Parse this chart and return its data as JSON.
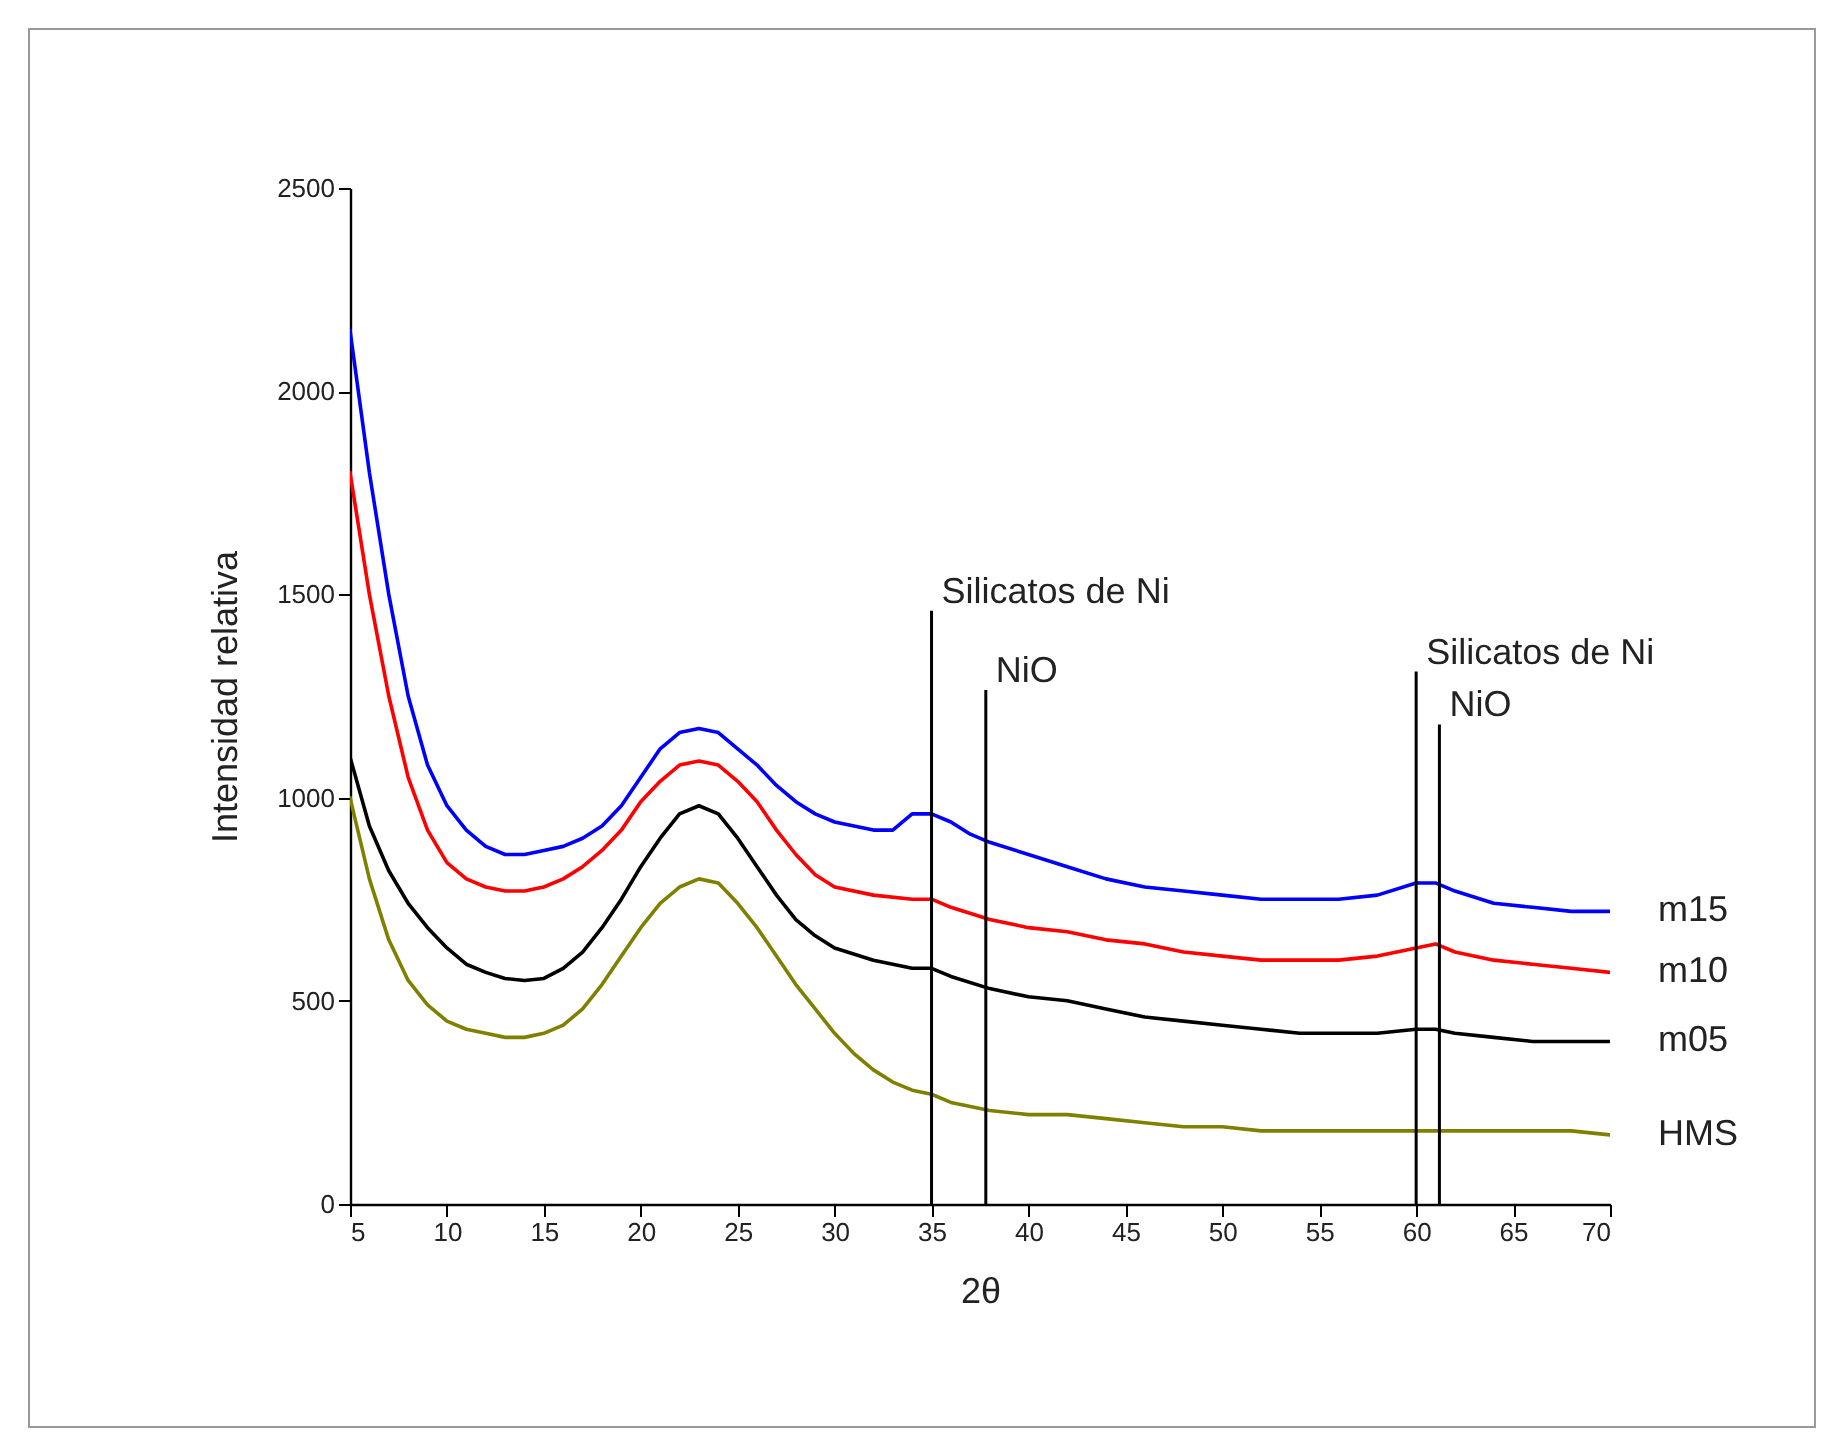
{
  "chart_data": {
    "type": "line",
    "xlabel": "2θ",
    "ylabel": "Intensidad relativa",
    "xlim": [
      5,
      70
    ],
    "xticks": [
      5,
      10,
      15,
      20,
      25,
      30,
      35,
      40,
      45,
      50,
      55,
      60,
      65,
      70
    ],
    "ylim": [
      0,
      2500
    ],
    "yticks": [
      0,
      500,
      1000,
      1500,
      2000,
      2500
    ],
    "grid": false,
    "legend": false,
    "series": [
      {
        "name": "m15",
        "color": "#0000ff",
        "x": [
          5,
          6,
          7,
          8,
          9,
          10,
          11,
          12,
          13,
          14,
          15,
          16,
          17,
          18,
          19,
          20,
          21,
          22,
          23,
          24,
          25,
          26,
          27,
          28,
          29,
          30,
          31,
          32,
          33,
          34,
          35,
          36,
          37,
          38,
          40,
          42,
          44,
          46,
          48,
          50,
          52,
          54,
          56,
          58,
          60,
          61,
          62,
          64,
          66,
          68,
          70
        ],
        "values": [
          2150,
          1800,
          1500,
          1250,
          1080,
          980,
          920,
          880,
          860,
          860,
          870,
          880,
          900,
          930,
          980,
          1050,
          1120,
          1160,
          1170,
          1160,
          1120,
          1080,
          1030,
          990,
          960,
          940,
          930,
          920,
          920,
          960,
          960,
          940,
          910,
          890,
          860,
          830,
          800,
          780,
          770,
          760,
          750,
          750,
          750,
          760,
          790,
          790,
          770,
          740,
          730,
          720,
          720
        ]
      },
      {
        "name": "m10",
        "color": "#ff0000",
        "x": [
          5,
          6,
          7,
          8,
          9,
          10,
          11,
          12,
          13,
          14,
          15,
          16,
          17,
          18,
          19,
          20,
          21,
          22,
          23,
          24,
          25,
          26,
          27,
          28,
          29,
          30,
          32,
          34,
          35,
          36,
          38,
          40,
          42,
          44,
          46,
          48,
          50,
          52,
          54,
          56,
          58,
          60,
          61,
          62,
          64,
          66,
          68,
          70
        ],
        "values": [
          1800,
          1500,
          1250,
          1050,
          920,
          840,
          800,
          780,
          770,
          770,
          780,
          800,
          830,
          870,
          920,
          990,
          1040,
          1080,
          1090,
          1080,
          1040,
          990,
          920,
          860,
          810,
          780,
          760,
          750,
          750,
          730,
          700,
          680,
          670,
          650,
          640,
          620,
          610,
          600,
          600,
          600,
          610,
          630,
          640,
          620,
          600,
          590,
          580,
          570
        ]
      },
      {
        "name": "m05",
        "color": "#000000",
        "x": [
          5,
          6,
          7,
          8,
          9,
          10,
          11,
          12,
          13,
          14,
          15,
          16,
          17,
          18,
          19,
          20,
          21,
          22,
          23,
          24,
          25,
          26,
          27,
          28,
          29,
          30,
          32,
          34,
          35,
          36,
          38,
          40,
          42,
          44,
          46,
          48,
          50,
          52,
          54,
          56,
          58,
          60,
          61,
          62,
          64,
          66,
          68,
          70
        ],
        "values": [
          1100,
          930,
          820,
          740,
          680,
          630,
          590,
          570,
          555,
          550,
          555,
          580,
          620,
          680,
          750,
          830,
          900,
          960,
          980,
          960,
          900,
          830,
          760,
          700,
          660,
          630,
          600,
          580,
          580,
          560,
          530,
          510,
          500,
          480,
          460,
          450,
          440,
          430,
          420,
          420,
          420,
          430,
          430,
          420,
          410,
          400,
          400,
          400
        ]
      },
      {
        "name": "HMS",
        "color": "#808000",
        "x": [
          5,
          6,
          7,
          8,
          9,
          10,
          11,
          12,
          13,
          14,
          15,
          16,
          17,
          18,
          19,
          20,
          21,
          22,
          23,
          24,
          25,
          26,
          27,
          28,
          29,
          30,
          31,
          32,
          33,
          34,
          35,
          36,
          38,
          40,
          42,
          44,
          46,
          48,
          50,
          52,
          54,
          56,
          58,
          60,
          62,
          64,
          66,
          68,
          70
        ],
        "values": [
          1000,
          800,
          650,
          550,
          490,
          450,
          430,
          420,
          410,
          410,
          420,
          440,
          480,
          540,
          610,
          680,
          740,
          780,
          800,
          790,
          740,
          680,
          610,
          540,
          480,
          420,
          370,
          330,
          300,
          280,
          270,
          250,
          230,
          220,
          220,
          210,
          200,
          190,
          190,
          180,
          180,
          180,
          180,
          180,
          180,
          180,
          180,
          180,
          170
        ]
      }
    ],
    "ref_lines": [
      {
        "axis": "x",
        "value": 35,
        "color": "#000000"
      },
      {
        "axis": "x",
        "value": 37.8,
        "color": "#000000"
      },
      {
        "axis": "x",
        "value": 60,
        "color": "#000000"
      },
      {
        "axis": "x",
        "value": 61.2,
        "color": "#000000"
      }
    ],
    "annotations": [
      {
        "text": "Silicatos de Ni",
        "x": 35,
        "y": 1460
      },
      {
        "text": "NiO",
        "x": 37.8,
        "y": 1265
      },
      {
        "text": "Silicatos de Ni",
        "x": 60,
        "y": 1310
      },
      {
        "text": "NiO",
        "x": 61.2,
        "y": 1180
      }
    ]
  }
}
